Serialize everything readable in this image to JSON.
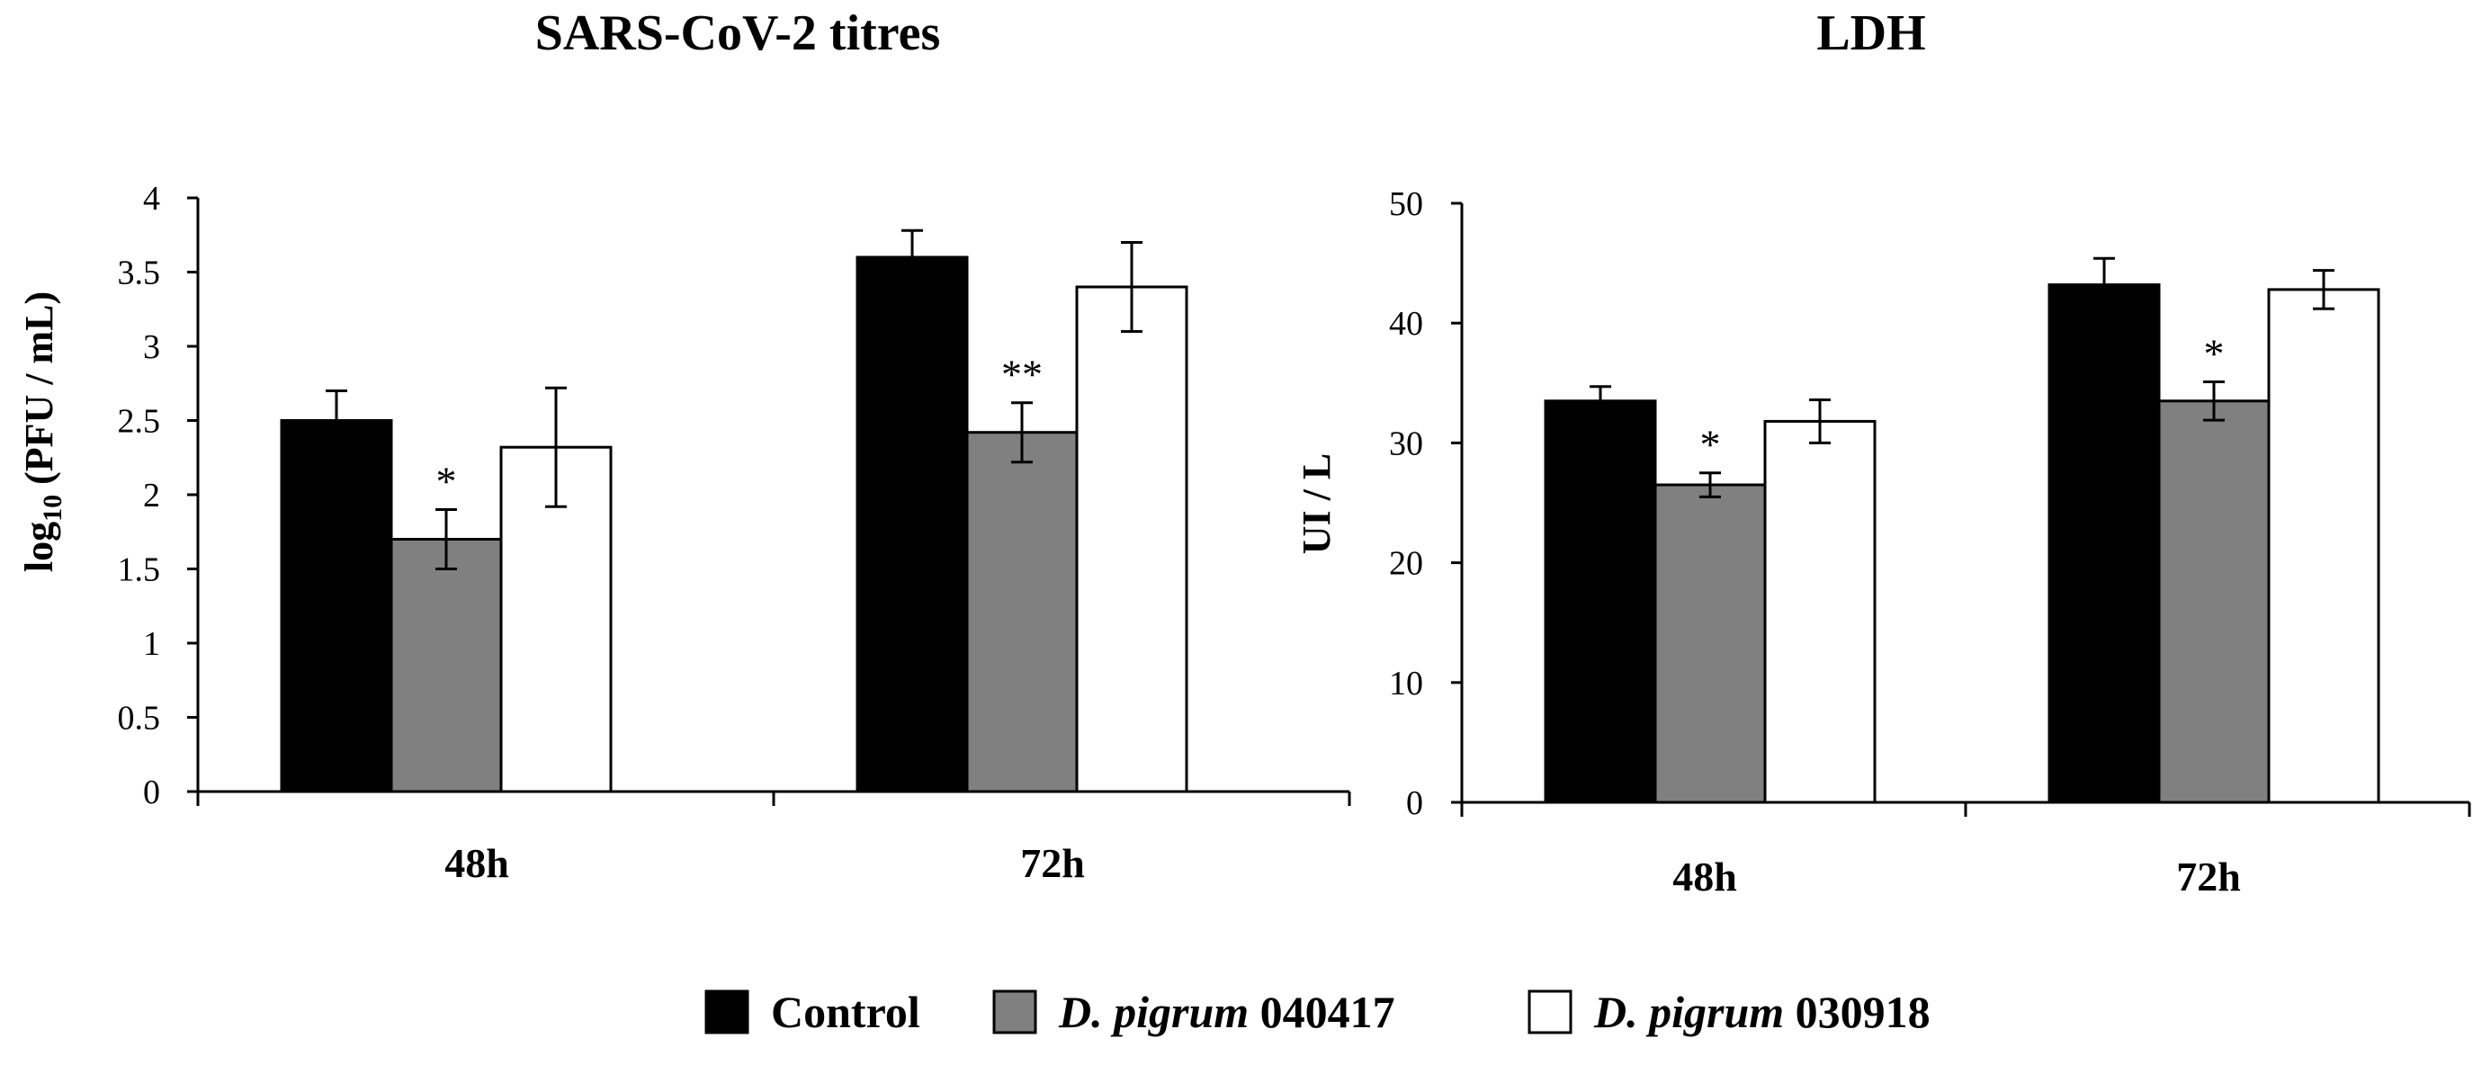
{
  "colors": {
    "control": "#000000",
    "d_pigrum_040417": "#808080",
    "d_pigrum_030918": "#ffffff",
    "axis": "#000000"
  },
  "chart_data": [
    {
      "type": "bar",
      "title": "SARS-CoV-2 titres",
      "ylabel_prefix": "log",
      "ylabel_subscript": "10",
      "ylabel_suffix": " (PFU / mL)",
      "xlabel": "",
      "ylim": [
        0,
        4
      ],
      "yticks": [
        0,
        0.5,
        1,
        1.5,
        2,
        2.5,
        3,
        3.5,
        4
      ],
      "ytick_labels": [
        "0",
        "0.5",
        "1",
        "1.5",
        "2",
        "2.5",
        "3",
        "3.5",
        "4"
      ],
      "categories": [
        "48h",
        "72h"
      ],
      "series": [
        {
          "name": "Control",
          "values": [
            2.5,
            3.6
          ],
          "errors": [
            0.2,
            0.18
          ]
        },
        {
          "name": "D. pigrum 040417",
          "values": [
            1.7,
            2.42
          ],
          "errors": [
            0.2,
            0.2
          ]
        },
        {
          "name": "D. pigrum 030918",
          "values": [
            2.32,
            3.4
          ],
          "errors": [
            0.4,
            0.3
          ]
        }
      ],
      "annotations": [
        {
          "category": "48h",
          "series": "D. pigrum 040417",
          "text": "*"
        },
        {
          "category": "72h",
          "series": "D. pigrum 040417",
          "text": "**"
        }
      ]
    },
    {
      "type": "bar",
      "title": "LDH",
      "ylabel": "UI / L",
      "xlabel": "",
      "ylim": [
        0,
        50
      ],
      "yticks": [
        0,
        10,
        20,
        30,
        40,
        50
      ],
      "ytick_labels": [
        "0",
        "10",
        "20",
        "30",
        "40",
        "50"
      ],
      "categories": [
        "48h",
        "72h"
      ],
      "series": [
        {
          "name": "Control",
          "values": [
            33.5,
            43.2
          ],
          "errors": [
            1.2,
            2.2
          ]
        },
        {
          "name": "D. pigrum 040417",
          "values": [
            26.5,
            33.5
          ],
          "errors": [
            1.0,
            1.6
          ]
        },
        {
          "name": "D. pigrum 030918",
          "values": [
            31.8,
            42.8
          ],
          "errors": [
            1.8,
            1.6
          ]
        }
      ],
      "annotations": [
        {
          "category": "48h",
          "series": "D. pigrum 040417",
          "text": "*"
        },
        {
          "category": "72h",
          "series": "D. pigrum 040417",
          "text": "*"
        }
      ]
    }
  ],
  "legend": {
    "items": [
      {
        "italic": "",
        "text": "Control"
      },
      {
        "italic": "D. pigrum",
        "text": " 040417"
      },
      {
        "italic": "D. pigrum",
        "text": " 030918"
      }
    ]
  }
}
